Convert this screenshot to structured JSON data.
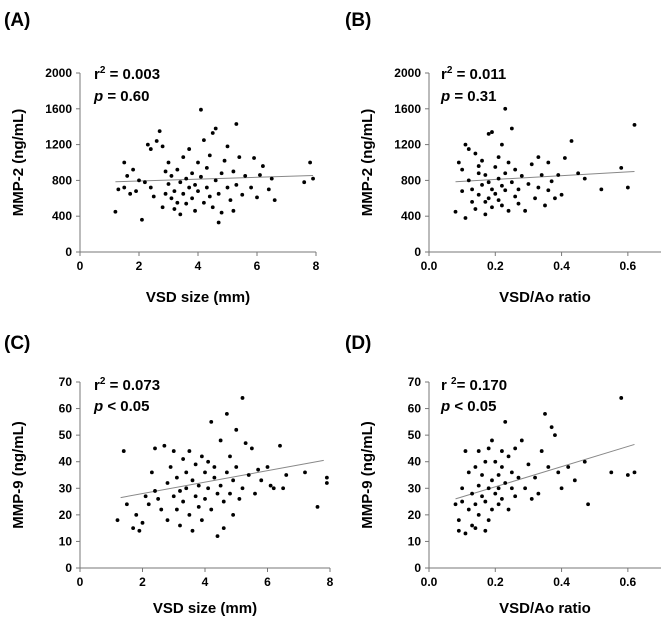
{
  "chart_data": [
    {
      "id": "A",
      "type": "scatter",
      "panel_label": "(A)",
      "xlabel": "VSD size (mm)",
      "ylabel": "MMP-2 (ng/mL)",
      "xlim": [
        0,
        8
      ],
      "ylim": [
        0,
        2000
      ],
      "xticks": [
        "0",
        "2",
        "4",
        "6",
        "8"
      ],
      "yticks": [
        "0",
        "400",
        "800",
        "1200",
        "1600",
        "2000"
      ],
      "stats": {
        "line1_pre": "r",
        "line1_sup": "2",
        "line1_post": " = 0.003",
        "line2_var": "p",
        "line2_post": " = 0.60"
      },
      "trendline": {
        "x": [
          1.2,
          7.9
        ],
        "y": [
          785,
          855
        ]
      },
      "points": [
        [
          1.2,
          450
        ],
        [
          1.3,
          700
        ],
        [
          1.5,
          1000
        ],
        [
          1.5,
          720
        ],
        [
          1.6,
          850
        ],
        [
          1.7,
          650
        ],
        [
          1.8,
          920
        ],
        [
          1.9,
          680
        ],
        [
          2.0,
          800
        ],
        [
          2.1,
          360
        ],
        [
          2.2,
          780
        ],
        [
          2.3,
          1200
        ],
        [
          2.4,
          1150
        ],
        [
          2.4,
          720
        ],
        [
          2.5,
          620
        ],
        [
          2.6,
          1240
        ],
        [
          2.7,
          1350
        ],
        [
          2.8,
          1180
        ],
        [
          2.8,
          500
        ],
        [
          2.9,
          900
        ],
        [
          2.9,
          650
        ],
        [
          3.0,
          1000
        ],
        [
          3.0,
          760
        ],
        [
          3.1,
          600
        ],
        [
          3.1,
          850
        ],
        [
          3.2,
          480
        ],
        [
          3.2,
          680
        ],
        [
          3.3,
          550
        ],
        [
          3.3,
          920
        ],
        [
          3.4,
          780
        ],
        [
          3.4,
          420
        ],
        [
          3.5,
          1060
        ],
        [
          3.5,
          650
        ],
        [
          3.6,
          820
        ],
        [
          3.6,
          540
        ],
        [
          3.7,
          720
        ],
        [
          3.7,
          1150
        ],
        [
          3.8,
          880
        ],
        [
          3.8,
          600
        ],
        [
          3.9,
          460
        ],
        [
          3.9,
          750
        ],
        [
          4.0,
          1000
        ],
        [
          4.0,
          680
        ],
        [
          4.1,
          1590
        ],
        [
          4.1,
          840
        ],
        [
          4.2,
          550
        ],
        [
          4.2,
          1250
        ],
        [
          4.3,
          720
        ],
        [
          4.3,
          940
        ],
        [
          4.4,
          620
        ],
        [
          4.4,
          1080
        ],
        [
          4.5,
          500
        ],
        [
          4.5,
          1330
        ],
        [
          4.6,
          800
        ],
        [
          4.6,
          1380
        ],
        [
          4.7,
          650
        ],
        [
          4.7,
          330
        ],
        [
          4.8,
          880
        ],
        [
          4.8,
          440
        ],
        [
          4.9,
          1020
        ],
        [
          5.0,
          720
        ],
        [
          5.0,
          1180
        ],
        [
          5.1,
          580
        ],
        [
          5.2,
          900
        ],
        [
          5.2,
          460
        ],
        [
          5.3,
          1430
        ],
        [
          5.3,
          750
        ],
        [
          5.4,
          1060
        ],
        [
          5.5,
          640
        ],
        [
          5.6,
          850
        ],
        [
          5.8,
          720
        ],
        [
          5.9,
          1050
        ],
        [
          6.0,
          610
        ],
        [
          6.1,
          860
        ],
        [
          6.2,
          960
        ],
        [
          6.4,
          700
        ],
        [
          6.5,
          820
        ],
        [
          6.6,
          580
        ],
        [
          7.6,
          780
        ],
        [
          7.8,
          1000
        ],
        [
          7.9,
          820
        ]
      ]
    },
    {
      "id": "B",
      "type": "scatter",
      "panel_label": "(B)",
      "xlabel": "VSD/Ao ratio",
      "ylabel": "MMP-2 (ng/mL)",
      "xlim": [
        0,
        0.7
      ],
      "ylim": [
        0,
        2000
      ],
      "xticks": [
        "0.0",
        "0.2",
        "0.4",
        "0.6"
      ],
      "yticks": [
        "0",
        "400",
        "800",
        "1200",
        "1600",
        "2000"
      ],
      "stats": {
        "line1_pre": "r",
        "line1_sup": "2",
        "line1_post": " = 0.011",
        "line2_var": "p",
        "line2_post": " = 0.31"
      },
      "trendline": {
        "x": [
          0.08,
          0.62
        ],
        "y": [
          785,
          900
        ]
      },
      "points": [
        [
          0.08,
          450
        ],
        [
          0.09,
          1000
        ],
        [
          0.1,
          920
        ],
        [
          0.1,
          680
        ],
        [
          0.11,
          380
        ],
        [
          0.11,
          1200
        ],
        [
          0.12,
          1150
        ],
        [
          0.12,
          800
        ],
        [
          0.13,
          560
        ],
        [
          0.13,
          700
        ],
        [
          0.14,
          1100
        ],
        [
          0.14,
          480
        ],
        [
          0.15,
          880
        ],
        [
          0.15,
          640
        ],
        [
          0.15,
          960
        ],
        [
          0.16,
          750
        ],
        [
          0.16,
          1020
        ],
        [
          0.17,
          560
        ],
        [
          0.17,
          420
        ],
        [
          0.17,
          860
        ],
        [
          0.18,
          600
        ],
        [
          0.18,
          780
        ],
        [
          0.18,
          1320
        ],
        [
          0.19,
          700
        ],
        [
          0.19,
          1340
        ],
        [
          0.19,
          500
        ],
        [
          0.2,
          950
        ],
        [
          0.2,
          650
        ],
        [
          0.21,
          820
        ],
        [
          0.21,
          1060
        ],
        [
          0.21,
          580
        ],
        [
          0.22,
          740
        ],
        [
          0.22,
          1200
        ],
        [
          0.22,
          520
        ],
        [
          0.23,
          880
        ],
        [
          0.23,
          1600
        ],
        [
          0.23,
          690
        ],
        [
          0.24,
          1000
        ],
        [
          0.24,
          460
        ],
        [
          0.25,
          780
        ],
        [
          0.25,
          1380
        ],
        [
          0.26,
          620
        ],
        [
          0.26,
          920
        ],
        [
          0.27,
          540
        ],
        [
          0.27,
          700
        ],
        [
          0.28,
          850
        ],
        [
          0.29,
          460
        ],
        [
          0.3,
          760
        ],
        [
          0.31,
          980
        ],
        [
          0.32,
          600
        ],
        [
          0.33,
          720
        ],
        [
          0.33,
          1060
        ],
        [
          0.34,
          860
        ],
        [
          0.35,
          520
        ],
        [
          0.36,
          690
        ],
        [
          0.36,
          1000
        ],
        [
          0.37,
          790
        ],
        [
          0.38,
          600
        ],
        [
          0.39,
          860
        ],
        [
          0.4,
          640
        ],
        [
          0.41,
          1050
        ],
        [
          0.43,
          1240
        ],
        [
          0.45,
          880
        ],
        [
          0.47,
          820
        ],
        [
          0.52,
          700
        ],
        [
          0.58,
          940
        ],
        [
          0.6,
          720
        ],
        [
          0.62,
          1420
        ]
      ]
    },
    {
      "id": "C",
      "type": "scatter",
      "panel_label": "(C)",
      "xlabel": "VSD size (mm)",
      "ylabel": "MMP-9 (ng/mL)",
      "xlim": [
        0,
        8
      ],
      "ylim": [
        0,
        70
      ],
      "xticks": [
        "0",
        "2",
        "4",
        "6",
        "8"
      ],
      "yticks": [
        "0",
        "10",
        "20",
        "30",
        "40",
        "50",
        "60",
        "70"
      ],
      "stats": {
        "line1_pre": "r",
        "line1_sup": "2",
        "line1_post": " = 0.073",
        "line2_var": "p",
        "line2_post": " < 0.05"
      },
      "trendline": {
        "x": [
          1.3,
          7.8
        ],
        "y": [
          26.5,
          40.5
        ]
      },
      "points": [
        [
          1.2,
          18
        ],
        [
          1.4,
          44
        ],
        [
          1.5,
          24
        ],
        [
          1.7,
          15
        ],
        [
          1.8,
          20
        ],
        [
          1.9,
          14
        ],
        [
          2.0,
          17
        ],
        [
          2.1,
          27
        ],
        [
          2.2,
          24
        ],
        [
          2.3,
          36
        ],
        [
          2.4,
          29
        ],
        [
          2.4,
          45
        ],
        [
          2.5,
          26
        ],
        [
          2.6,
          22
        ],
        [
          2.7,
          46
        ],
        [
          2.8,
          32
        ],
        [
          2.8,
          18
        ],
        [
          2.9,
          38
        ],
        [
          3.0,
          27
        ],
        [
          3.0,
          44
        ],
        [
          3.1,
          34
        ],
        [
          3.1,
          22
        ],
        [
          3.2,
          29
        ],
        [
          3.2,
          16
        ],
        [
          3.3,
          41
        ],
        [
          3.3,
          25
        ],
        [
          3.4,
          36
        ],
        [
          3.4,
          30
        ],
        [
          3.5,
          20
        ],
        [
          3.5,
          44
        ],
        [
          3.6,
          33
        ],
        [
          3.6,
          14
        ],
        [
          3.7,
          27
        ],
        [
          3.7,
          39
        ],
        [
          3.8,
          23
        ],
        [
          3.8,
          31
        ],
        [
          3.9,
          42
        ],
        [
          3.9,
          18
        ],
        [
          4.0,
          36
        ],
        [
          4.0,
          26
        ],
        [
          4.1,
          30
        ],
        [
          4.1,
          40
        ],
        [
          4.2,
          55
        ],
        [
          4.2,
          22
        ],
        [
          4.3,
          34
        ],
        [
          4.3,
          38
        ],
        [
          4.4,
          28
        ],
        [
          4.4,
          12
        ],
        [
          4.5,
          31
        ],
        [
          4.5,
          48
        ],
        [
          4.6,
          25
        ],
        [
          4.6,
          15
        ],
        [
          4.7,
          36
        ],
        [
          4.7,
          58
        ],
        [
          4.8,
          42
        ],
        [
          4.8,
          28
        ],
        [
          4.9,
          33
        ],
        [
          4.9,
          20
        ],
        [
          5.0,
          38
        ],
        [
          5.0,
          52
        ],
        [
          5.1,
          26
        ],
        [
          5.2,
          64
        ],
        [
          5.2,
          30
        ],
        [
          5.3,
          47
        ],
        [
          5.4,
          35
        ],
        [
          5.5,
          45
        ],
        [
          5.6,
          28
        ],
        [
          5.7,
          37
        ],
        [
          5.8,
          33
        ],
        [
          6.0,
          38
        ],
        [
          6.1,
          31
        ],
        [
          6.2,
          30
        ],
        [
          6.4,
          46
        ],
        [
          6.5,
          30
        ],
        [
          6.6,
          35
        ],
        [
          7.2,
          36
        ],
        [
          7.6,
          23
        ],
        [
          7.9,
          34
        ],
        [
          7.9,
          32
        ]
      ]
    },
    {
      "id": "D",
      "type": "scatter",
      "panel_label": "(D)",
      "xlabel": "VSD/Ao ratio",
      "ylabel": "MMP-9 (ng/mL)",
      "xlim": [
        0,
        0.7
      ],
      "ylim": [
        0,
        70
      ],
      "xticks": [
        "0.0",
        "0.2",
        "0.4",
        "0.6"
      ],
      "yticks": [
        "0",
        "10",
        "20",
        "30",
        "40",
        "50",
        "60",
        "70"
      ],
      "stats": {
        "line1_pre": "r ",
        "line1_sup": "2",
        "line1_post": "= 0.170",
        "line2_var": "p",
        "line2_post": " < 0.05"
      },
      "trendline": {
        "x": [
          0.08,
          0.62
        ],
        "y": [
          26,
          46.5
        ]
      },
      "points": [
        [
          0.08,
          24
        ],
        [
          0.09,
          18
        ],
        [
          0.09,
          14
        ],
        [
          0.1,
          30
        ],
        [
          0.1,
          25
        ],
        [
          0.11,
          13
        ],
        [
          0.11,
          44
        ],
        [
          0.12,
          22
        ],
        [
          0.12,
          36
        ],
        [
          0.13,
          16
        ],
        [
          0.13,
          28
        ],
        [
          0.14,
          38
        ],
        [
          0.14,
          24
        ],
        [
          0.14,
          15
        ],
        [
          0.15,
          31
        ],
        [
          0.15,
          44
        ],
        [
          0.15,
          20
        ],
        [
          0.16,
          27
        ],
        [
          0.16,
          35
        ],
        [
          0.17,
          14
        ],
        [
          0.17,
          40
        ],
        [
          0.17,
          25
        ],
        [
          0.18,
          30
        ],
        [
          0.18,
          18
        ],
        [
          0.18,
          45
        ],
        [
          0.19,
          33
        ],
        [
          0.19,
          22
        ],
        [
          0.19,
          48
        ],
        [
          0.2,
          28
        ],
        [
          0.2,
          40
        ],
        [
          0.21,
          24
        ],
        [
          0.21,
          35
        ],
        [
          0.21,
          30
        ],
        [
          0.22,
          44
        ],
        [
          0.22,
          26
        ],
        [
          0.22,
          38
        ],
        [
          0.23,
          32
        ],
        [
          0.23,
          55
        ],
        [
          0.24,
          22
        ],
        [
          0.24,
          42
        ],
        [
          0.25,
          30
        ],
        [
          0.25,
          36
        ],
        [
          0.26,
          27
        ],
        [
          0.26,
          45
        ],
        [
          0.27,
          34
        ],
        [
          0.28,
          48
        ],
        [
          0.29,
          30
        ],
        [
          0.3,
          39
        ],
        [
          0.31,
          26
        ],
        [
          0.32,
          34
        ],
        [
          0.33,
          28
        ],
        [
          0.34,
          44
        ],
        [
          0.35,
          58
        ],
        [
          0.36,
          38
        ],
        [
          0.37,
          53
        ],
        [
          0.38,
          50
        ],
        [
          0.39,
          36
        ],
        [
          0.4,
          30
        ],
        [
          0.42,
          38
        ],
        [
          0.44,
          33
        ],
        [
          0.47,
          40
        ],
        [
          0.48,
          24
        ],
        [
          0.55,
          36
        ],
        [
          0.58,
          64
        ],
        [
          0.6,
          35
        ],
        [
          0.62,
          36
        ]
      ]
    }
  ]
}
